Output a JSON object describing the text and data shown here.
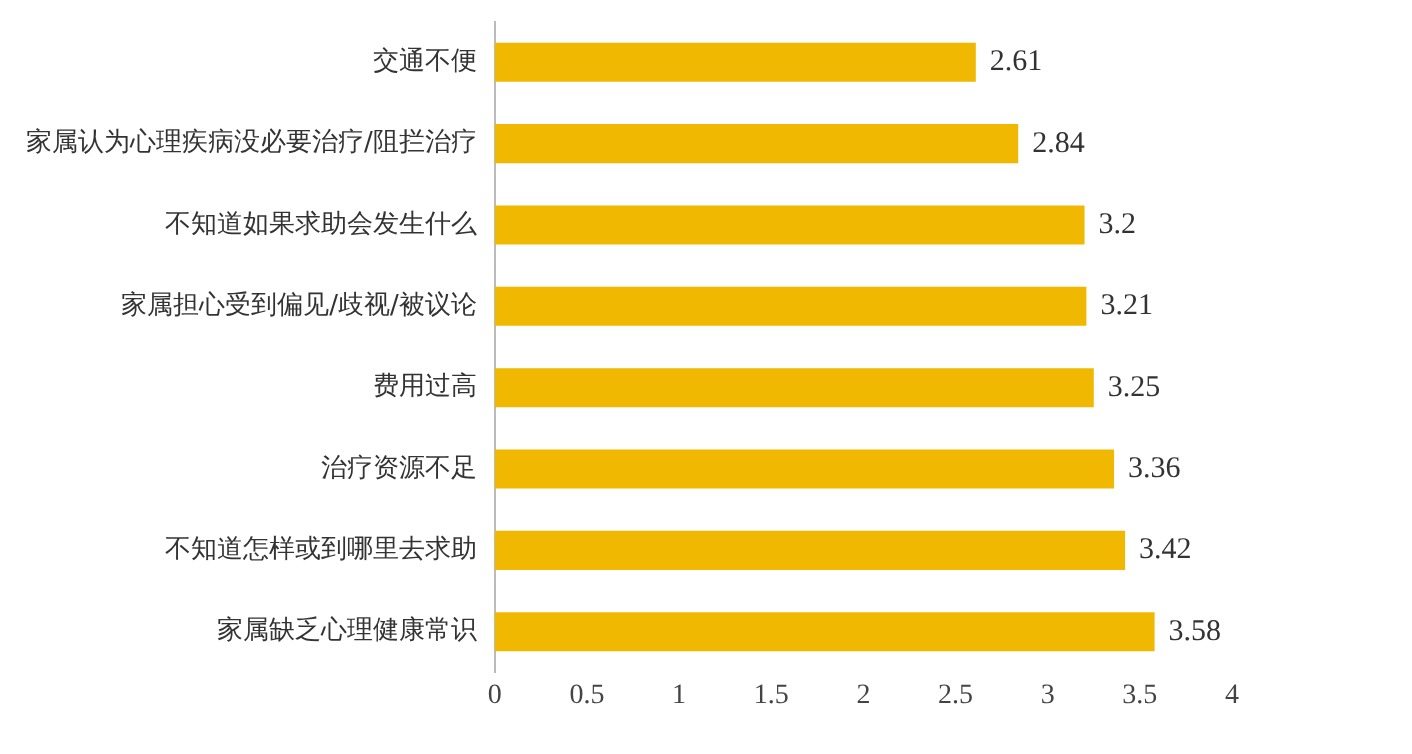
{
  "chart_data": {
    "type": "bar",
    "orientation": "horizontal",
    "categories": [
      "交通不便",
      "家属认为心理疾病没必要治疗/阻拦治疗",
      "不知道如果求助会发生什么",
      "家属担心受到偏见/歧视/被议论",
      "费用过高",
      "治疗资源不足",
      "不知道怎样或到哪里去求助",
      "家属缺乏心理健康常识"
    ],
    "values": [
      2.61,
      2.84,
      3.2,
      3.21,
      3.25,
      3.36,
      3.42,
      3.58
    ],
    "color": "#f0b800",
    "xlim": [
      0,
      4
    ],
    "xticks": [
      0,
      0.5,
      1,
      1.5,
      2,
      2.5,
      3,
      3.5,
      4
    ],
    "grid": false,
    "legend": false,
    "data_labels": true
  }
}
